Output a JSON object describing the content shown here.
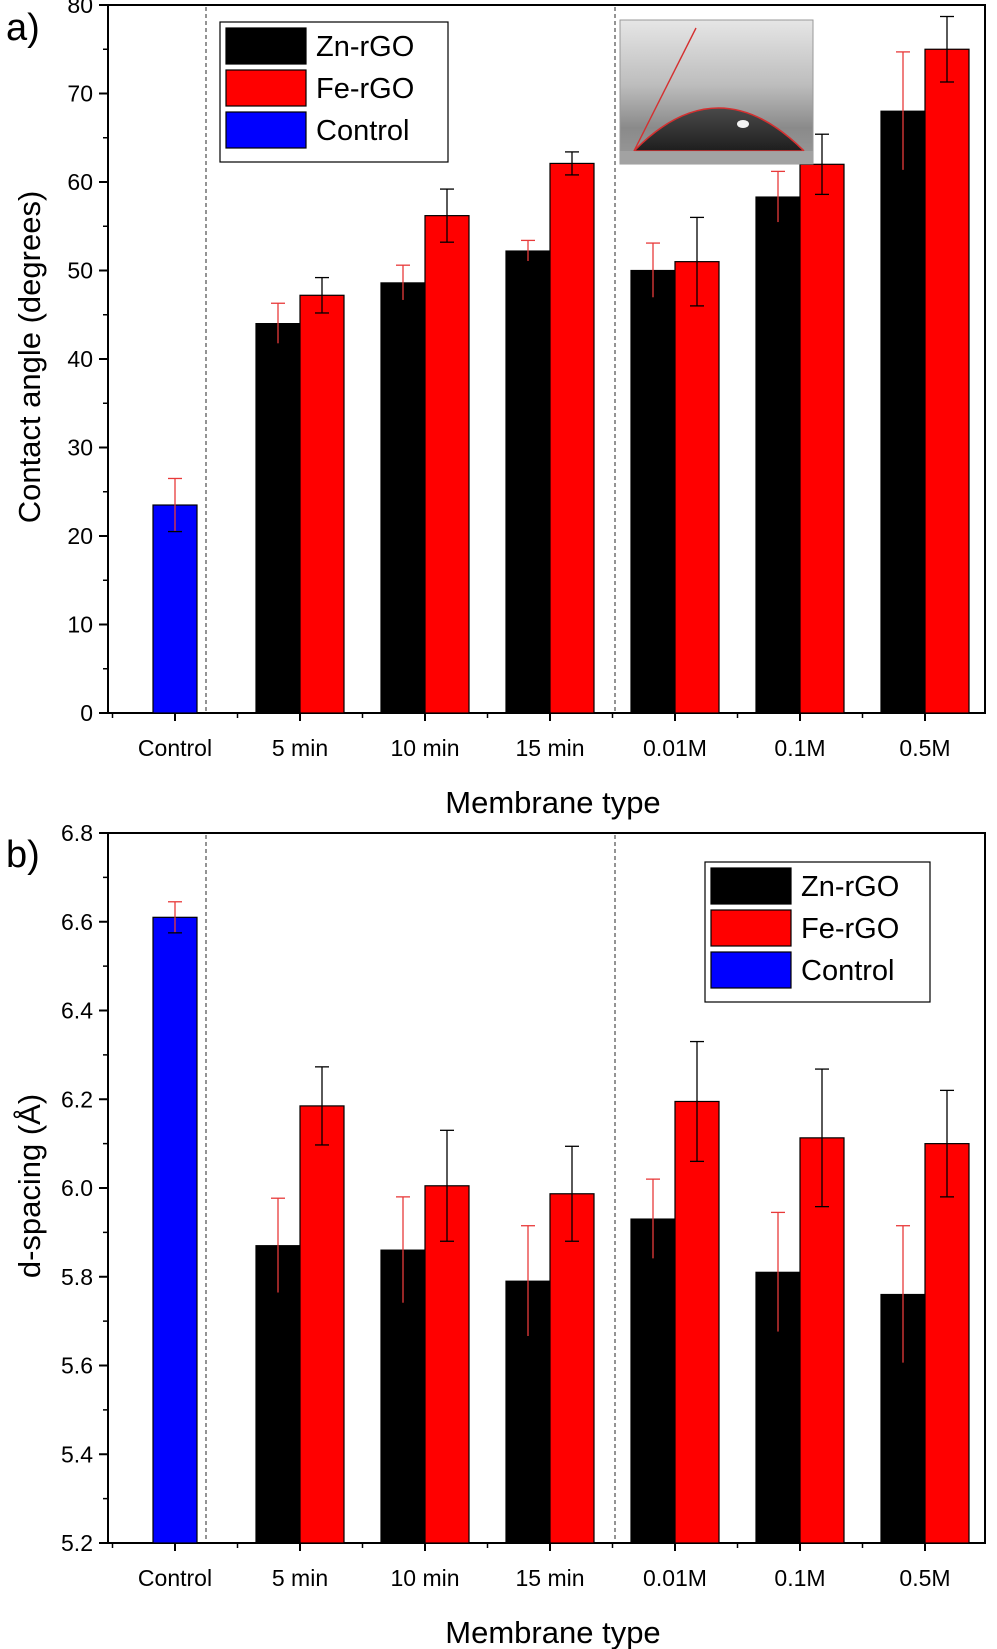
{
  "chart_data": [
    {
      "panel_label": "a)",
      "type": "bar",
      "xlabel": "Membrane type",
      "ylabel": "Contact angle (degrees)",
      "ylim": [
        0,
        80
      ],
      "ytick_step": 10,
      "yticks": [
        "0",
        "10",
        "20",
        "30",
        "40",
        "50",
        "60",
        "70",
        "80"
      ],
      "categories": [
        "Control",
        "5 min",
        "10 min",
        "15 min",
        "0.01M",
        "0.1M",
        "0.5M"
      ],
      "series": [
        {
          "name": "Zn-rGO",
          "color": "#000000",
          "values": [
            null,
            44.0,
            48.6,
            52.2,
            50.0,
            58.3,
            68.0
          ],
          "errors": [
            null,
            2.3,
            2.0,
            1.2,
            3.1,
            2.9,
            6.7
          ]
        },
        {
          "name": "Fe-rGO",
          "color": "#ff0000",
          "values": [
            null,
            47.2,
            56.2,
            62.1,
            51.0,
            62.0,
            75.0
          ],
          "errors": [
            null,
            2.0,
            3.0,
            1.3,
            5.0,
            3.4,
            3.7
          ]
        },
        {
          "name": "Control",
          "color": "#0000ff",
          "values": [
            23.5,
            null,
            null,
            null,
            null,
            null,
            null
          ],
          "errors": [
            3.0,
            null,
            null,
            null,
            null,
            null,
            null
          ]
        }
      ],
      "legend_position": "top-left",
      "dividers_after": [
        "Control",
        "15 min"
      ],
      "inset": "contact-angle droplet photograph (top-right)"
    },
    {
      "panel_label": "b)",
      "type": "bar",
      "xlabel": "Membrane type",
      "ylabel": "d-spacing (Å)",
      "ylim": [
        5.2,
        6.8
      ],
      "ytick_step": 0.2,
      "yticks": [
        "5.2",
        "5.4",
        "5.6",
        "5.8",
        "6.0",
        "6.2",
        "6.4",
        "6.6",
        "6.8"
      ],
      "categories": [
        "Control",
        "5 min",
        "10 min",
        "15 min",
        "0.01M",
        "0.1M",
        "0.5M"
      ],
      "series": [
        {
          "name": "Zn-rGO",
          "color": "#000000",
          "values": [
            null,
            5.87,
            5.86,
            5.79,
            5.93,
            5.81,
            5.76
          ],
          "errors": [
            null,
            0.107,
            0.12,
            0.125,
            0.09,
            0.135,
            0.155
          ]
        },
        {
          "name": "Fe-rGO",
          "color": "#ff0000",
          "values": [
            null,
            6.185,
            6.005,
            5.987,
            6.195,
            6.113,
            6.1
          ],
          "errors": [
            null,
            0.088,
            0.125,
            0.107,
            0.135,
            0.155,
            0.12
          ]
        },
        {
          "name": "Control",
          "color": "#0000ff",
          "values": [
            6.61,
            null,
            null,
            null,
            null,
            null,
            null
          ],
          "errors": [
            0.035,
            null,
            null,
            null,
            null,
            null,
            null
          ]
        }
      ],
      "legend_position": "top-right",
      "dividers_after": [
        "Control",
        "15 min"
      ]
    }
  ]
}
